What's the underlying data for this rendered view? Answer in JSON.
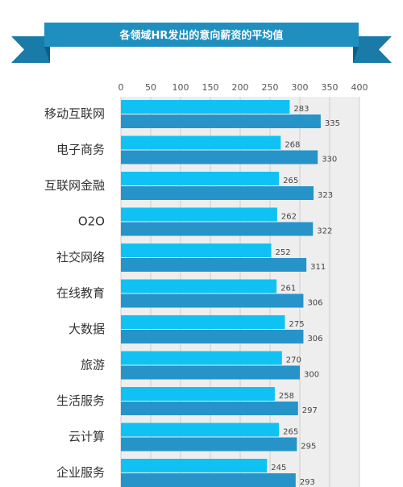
{
  "chart_data": {
    "type": "bar",
    "orientation": "horizontal",
    "title": "各领域HR发出的意向薪资的平均值",
    "categories": [
      "移动互联网",
      "电子商务",
      "互联网金融",
      "O2O",
      "社交网络",
      "在线教育",
      "大数据",
      "旅游",
      "生活服务",
      "云计算",
      "企业服务"
    ],
    "series": [
      {
        "values": [
          283,
          268,
          265,
          262,
          252,
          261,
          275,
          270,
          258,
          265,
          245
        ]
      },
      {
        "values": [
          335,
          330,
          323,
          322,
          311,
          306,
          306,
          300,
          297,
          295,
          293
        ]
      }
    ],
    "xlim": [
      0,
      400
    ],
    "x_ticks": [
      0,
      50,
      100,
      150,
      200,
      250,
      300,
      350,
      400
    ],
    "xlabel": "",
    "ylabel": "",
    "grid": true,
    "colors": {
      "series1": "#10c2f4",
      "series2": "#2693c9",
      "banner": "#1f8fc0",
      "banner_fold": "#0f5f85",
      "grid": "#cfcfcf",
      "plot_bg": "#eeeeee"
    }
  }
}
